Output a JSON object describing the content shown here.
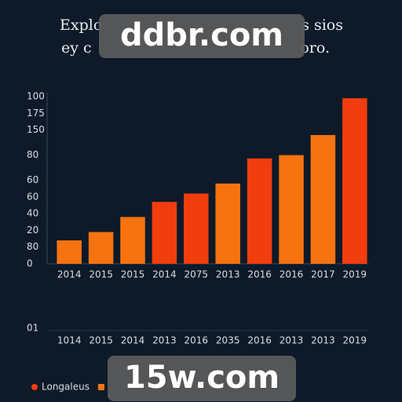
{
  "chart_data": {
    "type": "bar",
    "title": "Explo",
    "title_end": "s sios",
    "subtitle": "ey c",
    "subtitle_end": "oro.",
    "categories": [
      "2014",
      "2015",
      "2015",
      "2014",
      "2075",
      "2013",
      "2016",
      "2016",
      "2017",
      "2019"
    ],
    "second_row_label": "01",
    "second_row": [
      "1014",
      "2015",
      "2014",
      "2013",
      "2016",
      "2035",
      "2016",
      "2013",
      "2013",
      "2019"
    ],
    "values": [
      14,
      19,
      28,
      37,
      42,
      48,
      63,
      65,
      77,
      99
    ],
    "colors": [
      "#f7730f",
      "#f7730f",
      "#f7730f",
      "#f23d0e",
      "#f23d0e",
      "#f7730f",
      "#f23d0e",
      "#f7730f",
      "#f7730f",
      "#f23d0e"
    ],
    "ylim": [
      0,
      100
    ],
    "yticks": [
      0,
      {
        "value": 10,
        "label": "80"
      },
      20,
      {
        "value": 30,
        "label": "40"
      },
      {
        "value": 40,
        "label": "60"
      },
      {
        "value": 50,
        "label": "60"
      },
      {
        "value": 65,
        "label": "80"
      },
      {
        "value": 80,
        "label": "150"
      },
      {
        "value": 90,
        "label": "175"
      },
      100
    ],
    "grid": false,
    "legend": [
      {
        "name": "Longaleus",
        "color": "#f23d0e"
      },
      {
        "name": "",
        "color": "#f7730f"
      }
    ],
    "watermarks": [
      "ddbr.com",
      "15w.com"
    ]
  }
}
